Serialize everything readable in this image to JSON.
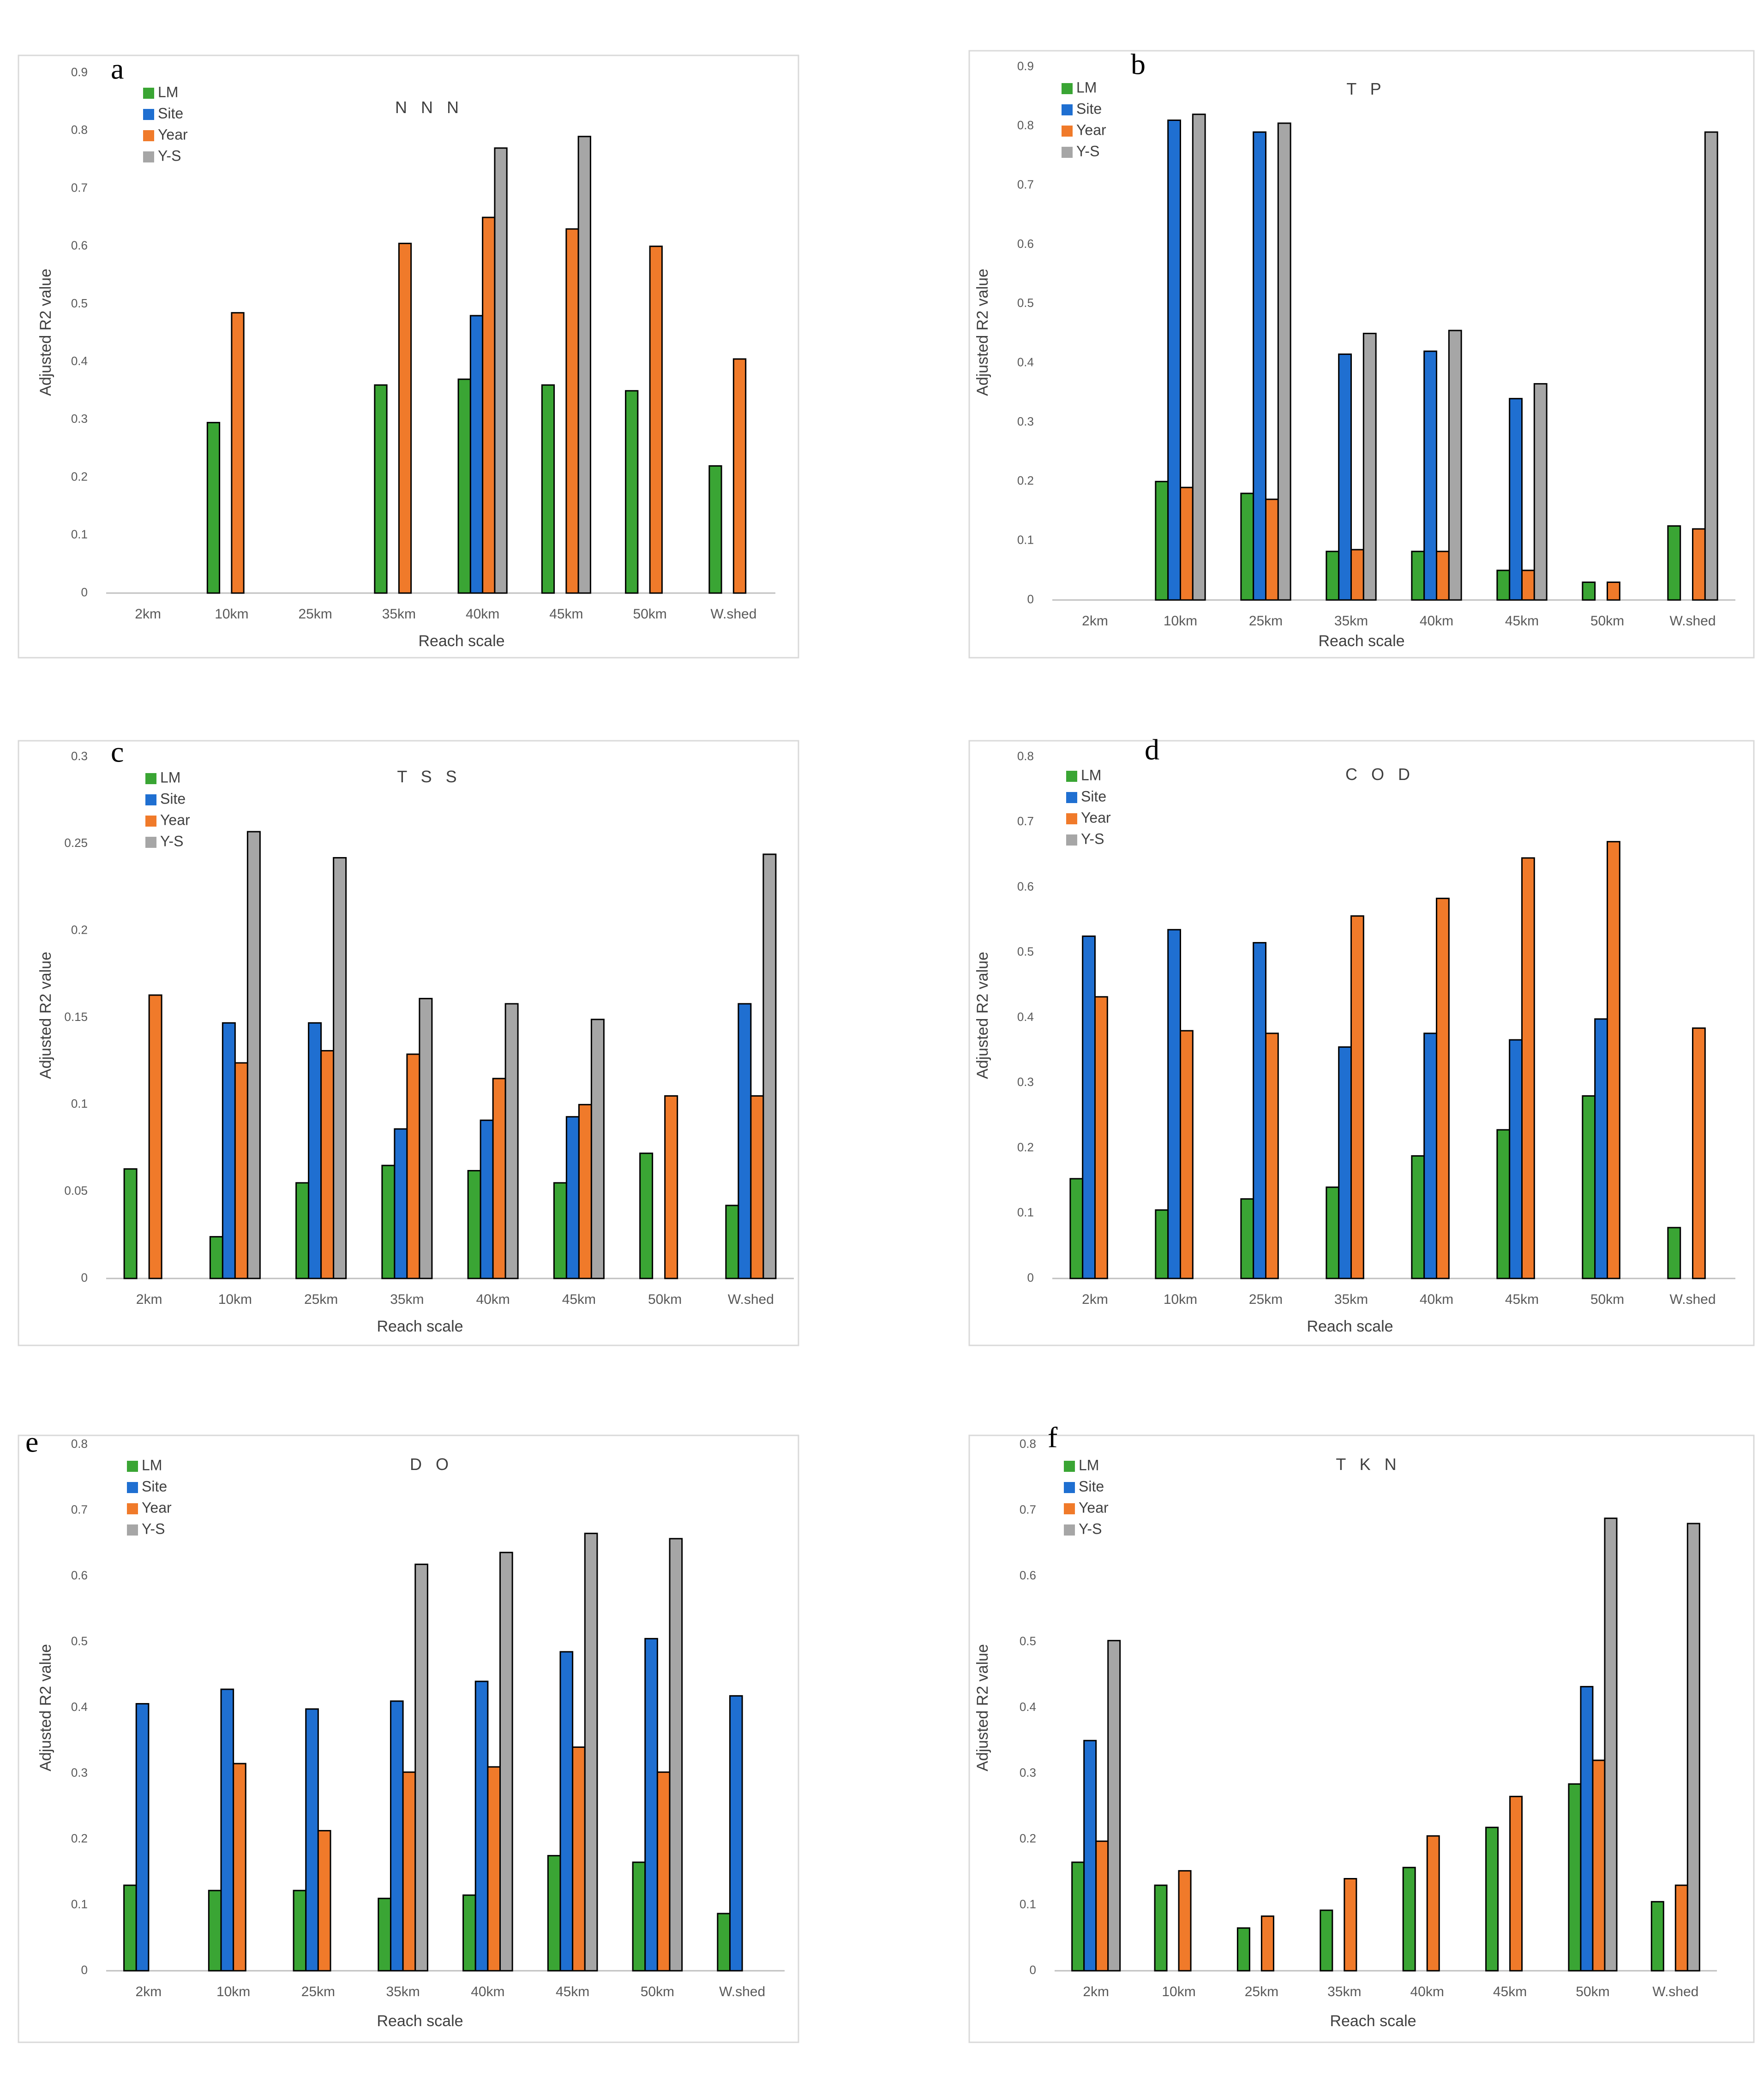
{
  "legend_entries": [
    "LM",
    "Site",
    "Year",
    "Y-S"
  ],
  "series_colors": {
    "LM": "#3aa534",
    "Site": "#1f6fd1",
    "Year": "#f07a2a",
    "Y-S": "#a6a6a6"
  },
  "chart_data": [
    {
      "panel": "a",
      "type": "bar",
      "title": "N N N",
      "xlabel": "Reach scale",
      "ylabel": "Adjusted R2 value",
      "ylim": [
        0,
        0.9
      ],
      "yticks": [
        "0",
        "0.1",
        "0.2",
        "0.3",
        "0.4",
        "0.5",
        "0.6",
        "0.7",
        "0.8",
        "0.9"
      ],
      "categories": [
        "2km",
        "10km",
        "25km",
        "35km",
        "40km",
        "45km",
        "50km",
        "W.shed"
      ],
      "legend": "top-left",
      "series": [
        {
          "name": "LM",
          "values": [
            null,
            0.295,
            null,
            0.36,
            0.37,
            0.36,
            0.35,
            0.22
          ]
        },
        {
          "name": "Site",
          "values": [
            null,
            null,
            null,
            null,
            0.48,
            null,
            null,
            null
          ]
        },
        {
          "name": "Year",
          "values": [
            null,
            0.485,
            null,
            0.605,
            0.65,
            0.63,
            0.6,
            0.405
          ]
        },
        {
          "name": "Y-S",
          "values": [
            null,
            null,
            null,
            null,
            0.77,
            0.79,
            null,
            null
          ]
        }
      ]
    },
    {
      "panel": "b",
      "type": "bar",
      "title": "T P",
      "xlabel": "Reach scale",
      "ylabel": "Adjusted R2 value",
      "ylim": [
        0,
        0.9
      ],
      "yticks": [
        "0",
        "0.1",
        "0.2",
        "0.3",
        "0.4",
        "0.5",
        "0.6",
        "0.7",
        "0.8",
        "0.9"
      ],
      "categories": [
        "2km",
        "10km",
        "25km",
        "35km",
        "40km",
        "45km",
        "50km",
        "W.shed"
      ],
      "legend": "top-left",
      "series": [
        {
          "name": "LM",
          "values": [
            null,
            0.2,
            0.18,
            0.082,
            0.082,
            0.05,
            0.03,
            0.125
          ]
        },
        {
          "name": "Site",
          "values": [
            null,
            0.81,
            0.79,
            0.415,
            0.42,
            0.34,
            null,
            null
          ]
        },
        {
          "name": "Year",
          "values": [
            null,
            0.19,
            0.17,
            0.085,
            0.082,
            0.05,
            0.03,
            0.12
          ]
        },
        {
          "name": "Y-S",
          "values": [
            null,
            0.82,
            0.805,
            0.45,
            0.455,
            0.365,
            null,
            0.79
          ]
        }
      ]
    },
    {
      "panel": "c",
      "type": "bar",
      "title": "T S S",
      "xlabel": "Reach scale",
      "ylabel": "Adjusted R2 value",
      "ylim": [
        0,
        0.3
      ],
      "yticks": [
        "0",
        "0.05",
        "0.1",
        "0.15",
        "0.2",
        "0.25",
        "0.3"
      ],
      "categories": [
        "2km",
        "10km",
        "25km",
        "35km",
        "40km",
        "45km",
        "50km",
        "W.shed"
      ],
      "legend": "top-left",
      "series": [
        {
          "name": "LM",
          "values": [
            0.063,
            0.024,
            0.055,
            0.065,
            0.062,
            0.055,
            0.072,
            0.042
          ]
        },
        {
          "name": "Site",
          "values": [
            null,
            0.147,
            0.147,
            0.086,
            0.091,
            0.093,
            null,
            0.158
          ]
        },
        {
          "name": "Year",
          "values": [
            0.163,
            0.124,
            0.131,
            0.129,
            0.115,
            0.1,
            0.105,
            0.105
          ]
        },
        {
          "name": "Y-S",
          "values": [
            null,
            0.257,
            0.242,
            0.161,
            0.158,
            0.149,
            null,
            0.244
          ]
        }
      ]
    },
    {
      "panel": "d",
      "type": "bar",
      "title": "C O D",
      "xlabel": "Reach scale",
      "ylabel": "Adjusted R2 value",
      "ylim": [
        0,
        0.8
      ],
      "yticks": [
        "0",
        "0.1",
        "0.2",
        "0.3",
        "0.4",
        "0.5",
        "0.6",
        "0.7",
        "0.8"
      ],
      "categories": [
        "2km",
        "10km",
        "25km",
        "35km",
        "40km",
        "45km",
        "50km",
        "W.shed"
      ],
      "legend": "top-left",
      "series": [
        {
          "name": "LM",
          "values": [
            0.153,
            0.105,
            0.122,
            0.14,
            0.188,
            0.228,
            0.28,
            0.078
          ]
        },
        {
          "name": "Site",
          "values": [
            0.525,
            0.535,
            0.515,
            0.355,
            0.376,
            0.366,
            0.398,
            null
          ]
        },
        {
          "name": "Year",
          "values": [
            0.432,
            0.38,
            0.376,
            0.556,
            0.583,
            0.645,
            0.67,
            0.384
          ]
        },
        {
          "name": "Y-S",
          "values": [
            null,
            null,
            null,
            null,
            null,
            null,
            null,
            null
          ]
        }
      ]
    },
    {
      "panel": "e",
      "type": "bar",
      "title": "D O",
      "xlabel": "Reach scale",
      "ylabel": "Adjusted R2 value",
      "ylim": [
        0,
        0.8
      ],
      "yticks": [
        "0",
        "0.1",
        "0.2",
        "0.3",
        "0.4",
        "0.5",
        "0.6",
        "0.7",
        "0.8"
      ],
      "categories": [
        "2km",
        "10km",
        "25km",
        "35km",
        "40km",
        "45km",
        "50km",
        "W.shed"
      ],
      "legend": "top-left",
      "series": [
        {
          "name": "LM",
          "values": [
            0.13,
            0.122,
            0.122,
            0.11,
            0.115,
            0.175,
            0.165,
            0.087
          ]
        },
        {
          "name": "Site",
          "values": [
            0.406,
            0.428,
            0.398,
            0.41,
            0.44,
            0.485,
            0.505,
            0.418
          ]
        },
        {
          "name": "Year",
          "values": [
            null,
            0.315,
            0.213,
            0.302,
            0.31,
            0.34,
            0.302,
            null
          ]
        },
        {
          "name": "Y-S",
          "values": [
            null,
            null,
            null,
            0.618,
            0.636,
            0.665,
            0.657,
            null
          ]
        }
      ]
    },
    {
      "panel": "f",
      "type": "bar",
      "title": "T K N",
      "xlabel": "Reach scale",
      "ylabel": "Adjusted R2 value",
      "ylim": [
        0,
        0.8
      ],
      "yticks": [
        "0",
        "0.1",
        "0.2",
        "0.3",
        "0.4",
        "0.5",
        "0.6",
        "0.7",
        "0.8"
      ],
      "categories": [
        "2km",
        "10km",
        "25km",
        "35km",
        "40km",
        "45km",
        "50km",
        "W.shed"
      ],
      "legend": "top-left",
      "series": [
        {
          "name": "LM",
          "values": [
            0.165,
            0.13,
            0.065,
            0.092,
            0.157,
            0.218,
            0.284,
            0.105
          ]
        },
        {
          "name": "Site",
          "values": [
            0.35,
            null,
            null,
            null,
            null,
            null,
            0.432,
            null
          ]
        },
        {
          "name": "Year",
          "values": [
            0.197,
            0.152,
            0.083,
            0.14,
            0.205,
            0.265,
            0.32,
            0.13
          ]
        },
        {
          "name": "Y-S",
          "values": [
            0.502,
            null,
            null,
            null,
            null,
            null,
            0.688,
            0.68
          ]
        }
      ]
    }
  ]
}
